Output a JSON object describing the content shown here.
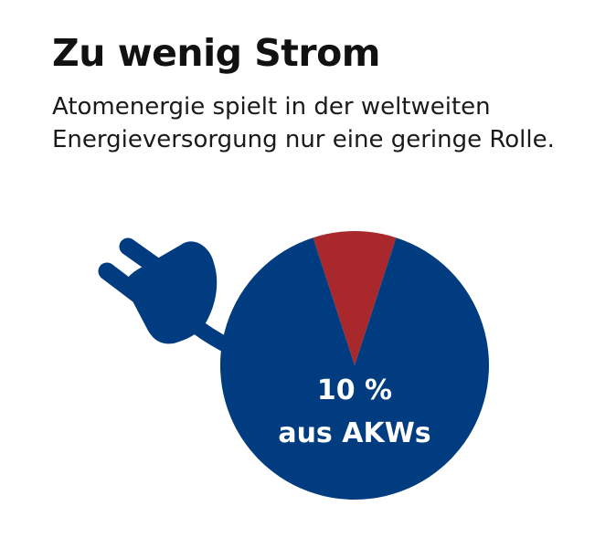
{
  "header": {
    "title": "Zu wenig Strom",
    "subtitle": "Atomenergie spielt in der weltweiten Energieversorgung nur eine geringe Rolle."
  },
  "colors": {
    "rest": "#003c7f",
    "akw": "#a8282b",
    "label": "#ffffff"
  },
  "icons": {
    "plug": "power-plug-icon"
  },
  "chart_data": {
    "type": "pie",
    "title": "Zu wenig Strom",
    "slices": [
      {
        "label": "aus AKWs",
        "value": 10
      },
      {
        "label": "",
        "value": 90
      }
    ],
    "annotation": {
      "value_text": "10 %",
      "label_text": "aus AKWs"
    }
  }
}
